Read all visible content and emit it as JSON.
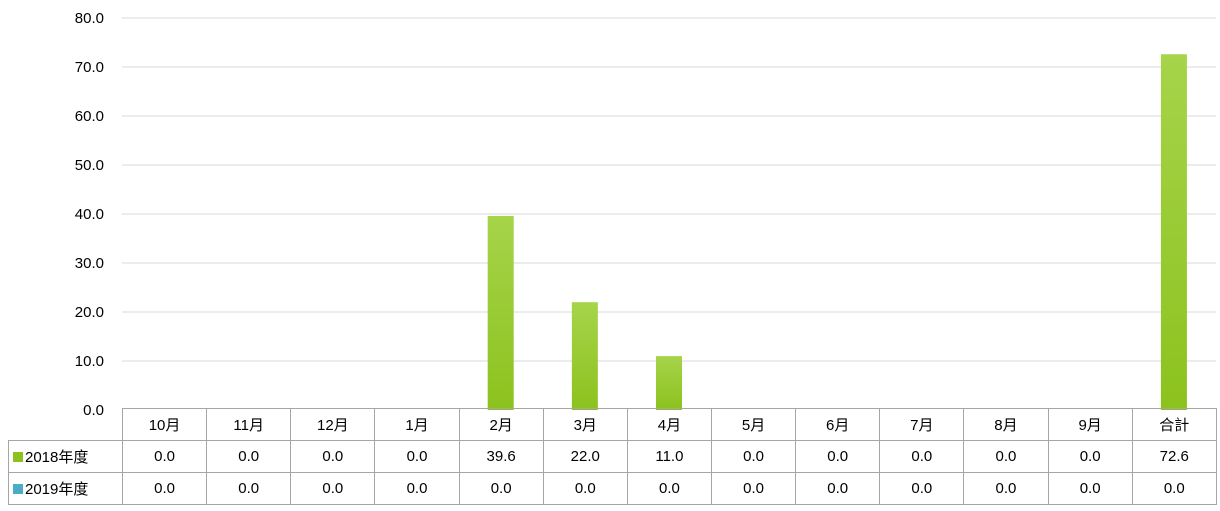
{
  "chart_data": {
    "type": "bar",
    "categories": [
      "10月",
      "11月",
      "12月",
      "1月",
      "2月",
      "3月",
      "4月",
      "5月",
      "6月",
      "7月",
      "8月",
      "9月",
      "合計"
    ],
    "series": [
      {
        "name": "2018年度",
        "color": "#8cc21e",
        "values": [
          0.0,
          0.0,
          0.0,
          0.0,
          39.6,
          22.0,
          11.0,
          0.0,
          0.0,
          0.0,
          0.0,
          0.0,
          72.6
        ],
        "labels": [
          "0.0",
          "0.0",
          "0.0",
          "0.0",
          "39.6",
          "22.0",
          "11.0",
          "0.0",
          "0.0",
          "0.0",
          "0.0",
          "0.0",
          "72.6"
        ]
      },
      {
        "name": "2019年度",
        "color": "#4bacc6",
        "values": [
          0.0,
          0.0,
          0.0,
          0.0,
          0.0,
          0.0,
          0.0,
          0.0,
          0.0,
          0.0,
          0.0,
          0.0,
          0.0
        ],
        "labels": [
          "0.0",
          "0.0",
          "0.0",
          "0.0",
          "0.0",
          "0.0",
          "0.0",
          "0.0",
          "0.0",
          "0.0",
          "0.0",
          "0.0",
          "0.0"
        ]
      }
    ],
    "ylim": [
      0,
      80
    ],
    "yticks": [
      "0.0",
      "10.0",
      "20.0",
      "30.0",
      "40.0",
      "50.0",
      "60.0",
      "70.0",
      "80.0"
    ],
    "grid": true,
    "legend": "data-table",
    "title": "",
    "xlabel": "",
    "ylabel": ""
  }
}
